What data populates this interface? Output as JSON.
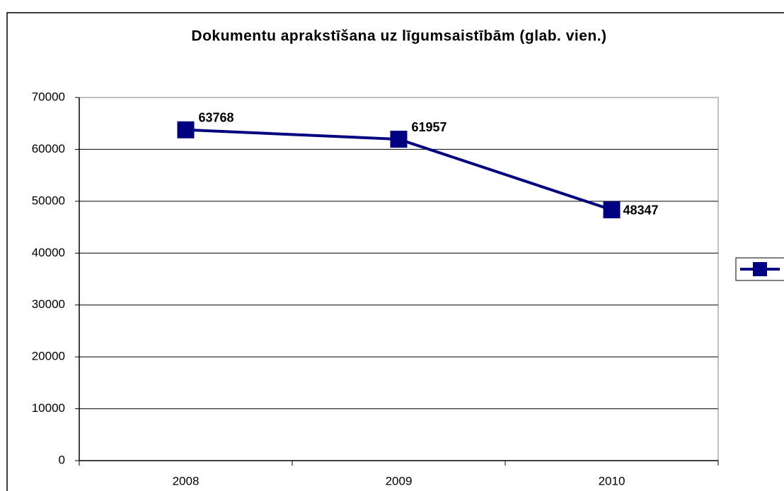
{
  "chart_data": {
    "type": "line",
    "title": "Dokumentu aprakstīšana uz līgumsaistībām (glab. vien.)",
    "categories": [
      "2008",
      "2009",
      "2010"
    ],
    "series": [
      {
        "color": "#000080",
        "values": [
          63768,
          61957,
          48347
        ]
      }
    ],
    "ylim": [
      0,
      70000
    ],
    "yticks": [
      0,
      10000,
      20000,
      30000,
      40000,
      50000,
      60000,
      70000
    ],
    "grid": true,
    "legend": "right"
  }
}
